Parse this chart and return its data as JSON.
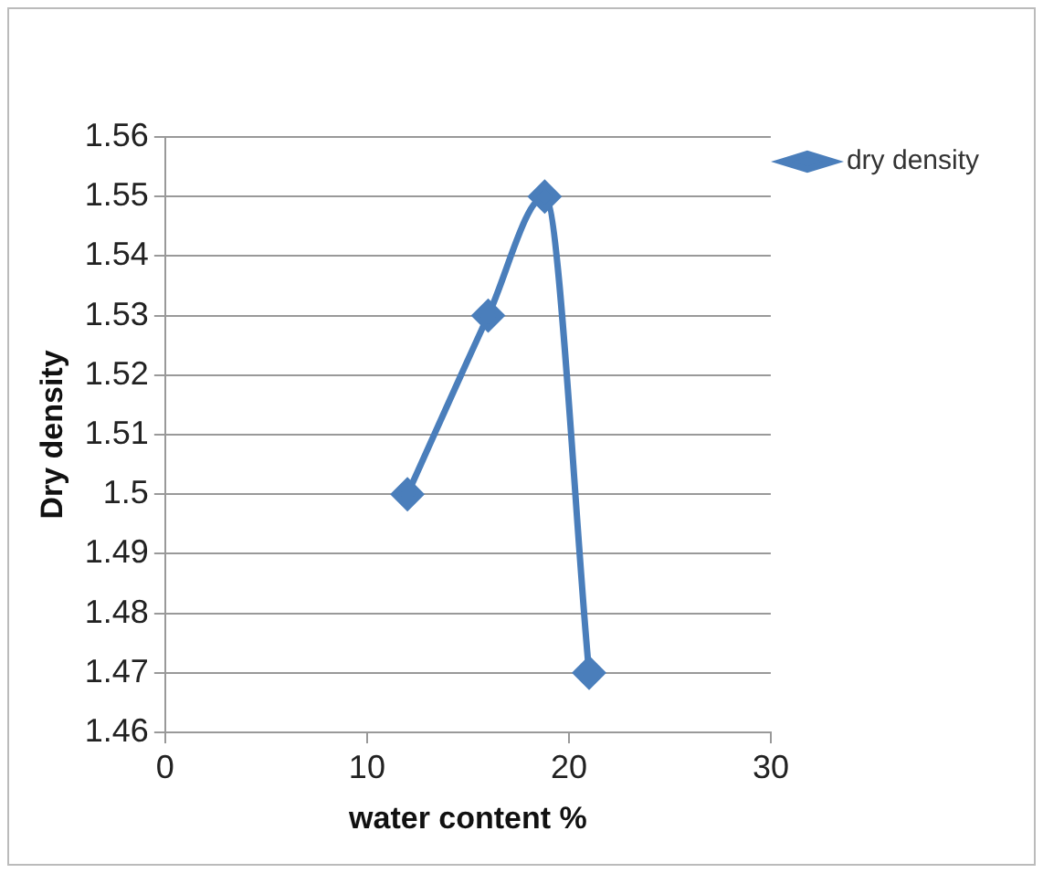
{
  "chart_data": {
    "type": "line",
    "xlabel": "water content %",
    "ylabel": "Dry density",
    "series": [
      {
        "name": "dry density",
        "color": "#4a7ebb",
        "x": [
          12,
          16,
          18.8,
          21
        ],
        "values": [
          1.5,
          1.53,
          1.55,
          1.47
        ]
      }
    ],
    "xlim": [
      0,
      30
    ],
    "xticks": [
      0,
      10,
      20,
      30
    ],
    "ylim": [
      1.46,
      1.56
    ],
    "yticks": [
      1.46,
      1.47,
      1.48,
      1.49,
      1.5,
      1.51,
      1.52,
      1.53,
      1.54,
      1.55,
      1.56
    ],
    "grid": "y",
    "legend": "top right",
    "marker": "diamond",
    "line_style": "solid"
  }
}
